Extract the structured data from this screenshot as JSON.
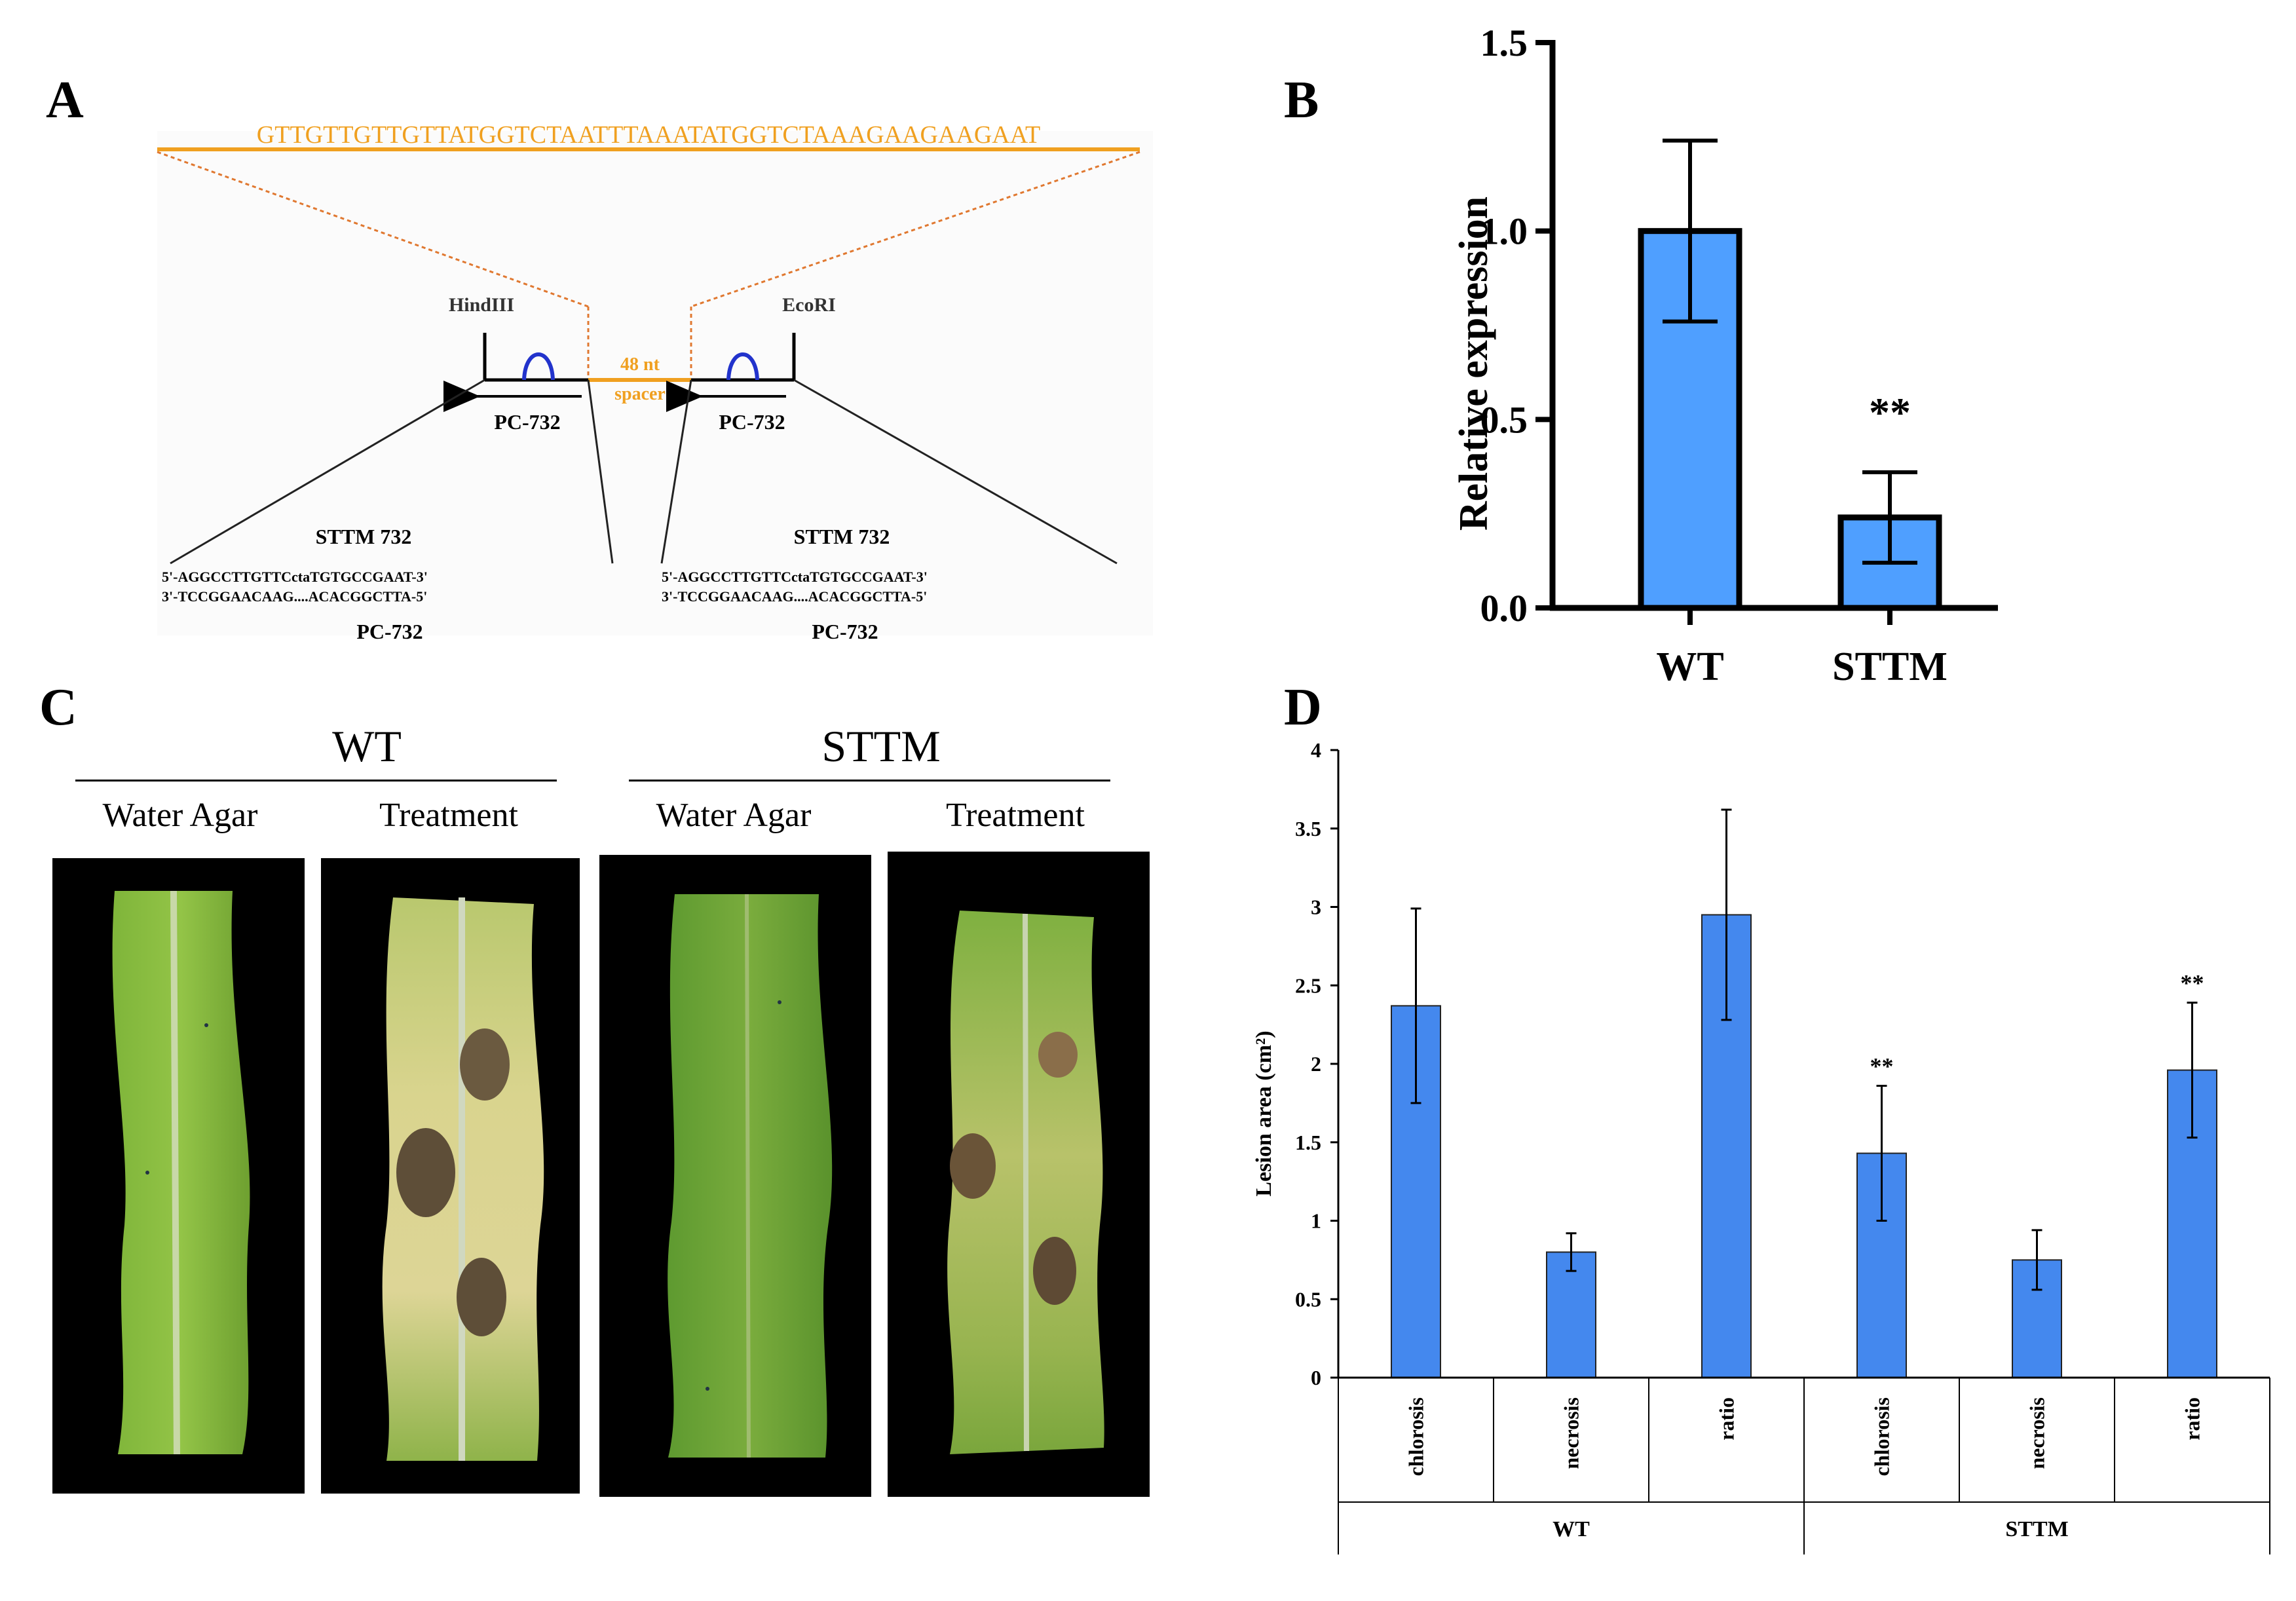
{
  "panel_labels": {
    "a": "A",
    "b": "B",
    "c": "C",
    "d": "D"
  },
  "panel_a": {
    "spacer_sequence": "GTTGTTGTTGTTATGGTCTAATTTAAATATGGTCTAAAGAAGAAGAAT",
    "site_left": "HindIII",
    "site_right": "EcoRI",
    "spacer_label_1": "48 nt",
    "spacer_label_2": "spacer",
    "promoter_left": "PC-732",
    "promoter_right": "PC-732",
    "sttm_left": {
      "title": "STTM 732",
      "line1": "5'-AGGCCTTGTTCctaTGTGCCGAAT-3'",
      "line2": "3'-TCCGGAACAAG....ACACGGCTTA-5'",
      "footer": "PC-732"
    },
    "sttm_right": {
      "title": "STTM 732",
      "line1": "5'-AGGCCTTGTTCctaTGTGCCGAAT-3'",
      "line2": "3'-TCCGGAACAAG....ACACGGCTTA-5'",
      "footer": "PC-732"
    },
    "colors": {
      "orange": "#F0A020",
      "blue": "#2233CC"
    }
  },
  "panel_c": {
    "group_wt": "WT",
    "group_sttm": "STTM",
    "col_1": "Water Agar",
    "col_2": "Treatment",
    "col_3": "Water Agar",
    "col_4": "Treatment"
  },
  "chart_data": [
    {
      "id": "B",
      "type": "bar",
      "title": "",
      "xlabel": "",
      "ylabel": "Relative expression",
      "categories": [
        "WT",
        "STTM"
      ],
      "values": [
        1.0,
        0.24
      ],
      "errors": [
        0.24,
        0.12
      ],
      "significance": [
        "",
        "**"
      ],
      "ylim": [
        0,
        1.5
      ],
      "yticks": [
        "0.0",
        "0.5",
        "1.0",
        "1.5"
      ],
      "bar_color": "#4F9FFF"
    },
    {
      "id": "D",
      "type": "bar",
      "title": "",
      "xlabel": "",
      "ylabel": "Lesion area (cm²)",
      "categories": [
        "chlorosis",
        "necrosis",
        "ratio",
        "chlorosis",
        "necrosis",
        "ratio"
      ],
      "groups": [
        "WT",
        "STTM"
      ],
      "values": [
        2.37,
        0.8,
        2.95,
        1.43,
        0.75,
        1.96
      ],
      "errors": [
        0.62,
        0.12,
        0.67,
        0.43,
        0.19,
        0.43
      ],
      "significance": [
        "",
        "",
        "",
        "**",
        "",
        "**"
      ],
      "ylim": [
        0,
        4
      ],
      "yticks": [
        "0",
        "0.5",
        "1",
        "1.5",
        "2",
        "2.5",
        "3",
        "3.5",
        "4"
      ],
      "bar_color": "#4488EE"
    }
  ]
}
